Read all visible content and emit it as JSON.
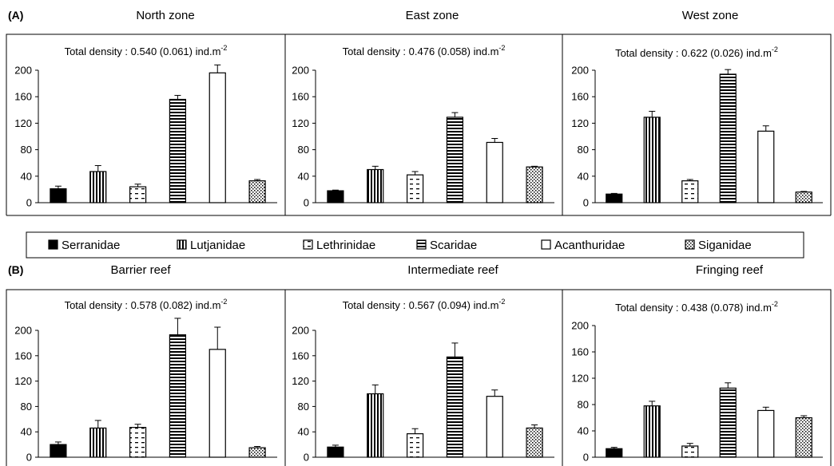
{
  "figure": {
    "section_a_label": "(A)",
    "section_b_label": "(B)"
  },
  "legend": {
    "items": [
      {
        "name": "Serranidae",
        "pattern": "solid"
      },
      {
        "name": "Lutjanidae",
        "pattern": "vertical"
      },
      {
        "name": "Lethrinidae",
        "pattern": "dash"
      },
      {
        "name": "Scaridae",
        "pattern": "horizontal"
      },
      {
        "name": "Acanthuridae",
        "pattern": "empty"
      },
      {
        "name": "Siganidae",
        "pattern": "dots"
      }
    ]
  },
  "chart_data": [
    {
      "type": "bar",
      "title": "North zone",
      "annotation": "Total density : 0.540 (0.061) ind.m",
      "annotation_sup": "-2",
      "categories": [
        "Serranidae",
        "Lutjanidae",
        "Lethrinidae",
        "Scaridae",
        "Acanthuridae",
        "Siganidae"
      ],
      "values": [
        21,
        47,
        24,
        156,
        196,
        33
      ],
      "errors": [
        4,
        9,
        4,
        6,
        12,
        2
      ],
      "ylim": [
        0,
        200
      ],
      "yticks": [
        "0",
        "40",
        "80",
        "120",
        "160",
        "200"
      ]
    },
    {
      "type": "bar",
      "title": "East zone",
      "annotation": "Total density : 0.476 (0.058) ind.m",
      "annotation_sup": "-2",
      "categories": [
        "Serranidae",
        "Lutjanidae",
        "Lethrinidae",
        "Scaridae",
        "Acanthuridae",
        "Siganidae"
      ],
      "values": [
        18,
        50,
        42,
        129,
        91,
        54
      ],
      "errors": [
        1,
        5,
        5,
        7,
        6,
        1
      ],
      "ylim": [
        0,
        200
      ],
      "yticks": [
        "0",
        "40",
        "80",
        "120",
        "160",
        "200"
      ]
    },
    {
      "type": "bar",
      "title": "West zone",
      "annotation": "Total density : 0.622 (0.026) ind.m",
      "annotation_sup": "-2",
      "categories": [
        "Serranidae",
        "Lutjanidae",
        "Lethrinidae",
        "Scaridae",
        "Acanthuridae",
        "Siganidae"
      ],
      "values": [
        13,
        129,
        33,
        194,
        108,
        16
      ],
      "errors": [
        1,
        9,
        2,
        7,
        8,
        1
      ],
      "ylim": [
        0,
        200
      ],
      "yticks": [
        "0",
        "40",
        "80",
        "120",
        "160",
        "200"
      ]
    },
    {
      "type": "bar",
      "title": "Barrier reef",
      "annotation": "Total density : 0.578 (0.082) ind.m",
      "annotation_sup": "-2",
      "categories": [
        "Serranidae",
        "Lutjanidae",
        "Lethrinidae",
        "Scaridae",
        "Acanthuridae",
        "Siganidae"
      ],
      "values": [
        20,
        46,
        47,
        193,
        170,
        15
      ],
      "errors": [
        4,
        12,
        5,
        26,
        35,
        2
      ],
      "ylim": [
        0,
        200
      ],
      "yticks": [
        "0",
        "40",
        "80",
        "120",
        "160",
        "200"
      ]
    },
    {
      "type": "bar",
      "title": "Intermediate reef",
      "annotation": "Total density : 0.567 (0.094) ind.m",
      "annotation_sup": "-2",
      "categories": [
        "Serranidae",
        "Lutjanidae",
        "Lethrinidae",
        "Scaridae",
        "Acanthuridae",
        "Siganidae"
      ],
      "values": [
        16,
        100,
        37,
        158,
        96,
        46
      ],
      "errors": [
        3,
        14,
        8,
        22,
        10,
        5
      ],
      "ylim": [
        0,
        200
      ],
      "yticks": [
        "0",
        "40",
        "80",
        "120",
        "160",
        "200"
      ]
    },
    {
      "type": "bar",
      "title": "Fringing reef",
      "annotation": "Total density : 0.438 (0.078) ind.m",
      "annotation_sup": "-2",
      "categories": [
        "Serranidae",
        "Lutjanidae",
        "Lethrinidae",
        "Scaridae",
        "Acanthuridae",
        "Siganidae"
      ],
      "values": [
        13,
        78,
        17,
        105,
        71,
        60
      ],
      "errors": [
        2,
        7,
        4,
        8,
        5,
        3
      ],
      "ylim": [
        0,
        200
      ],
      "yticks": [
        "0",
        "40",
        "80",
        "120",
        "160",
        "200"
      ]
    }
  ]
}
